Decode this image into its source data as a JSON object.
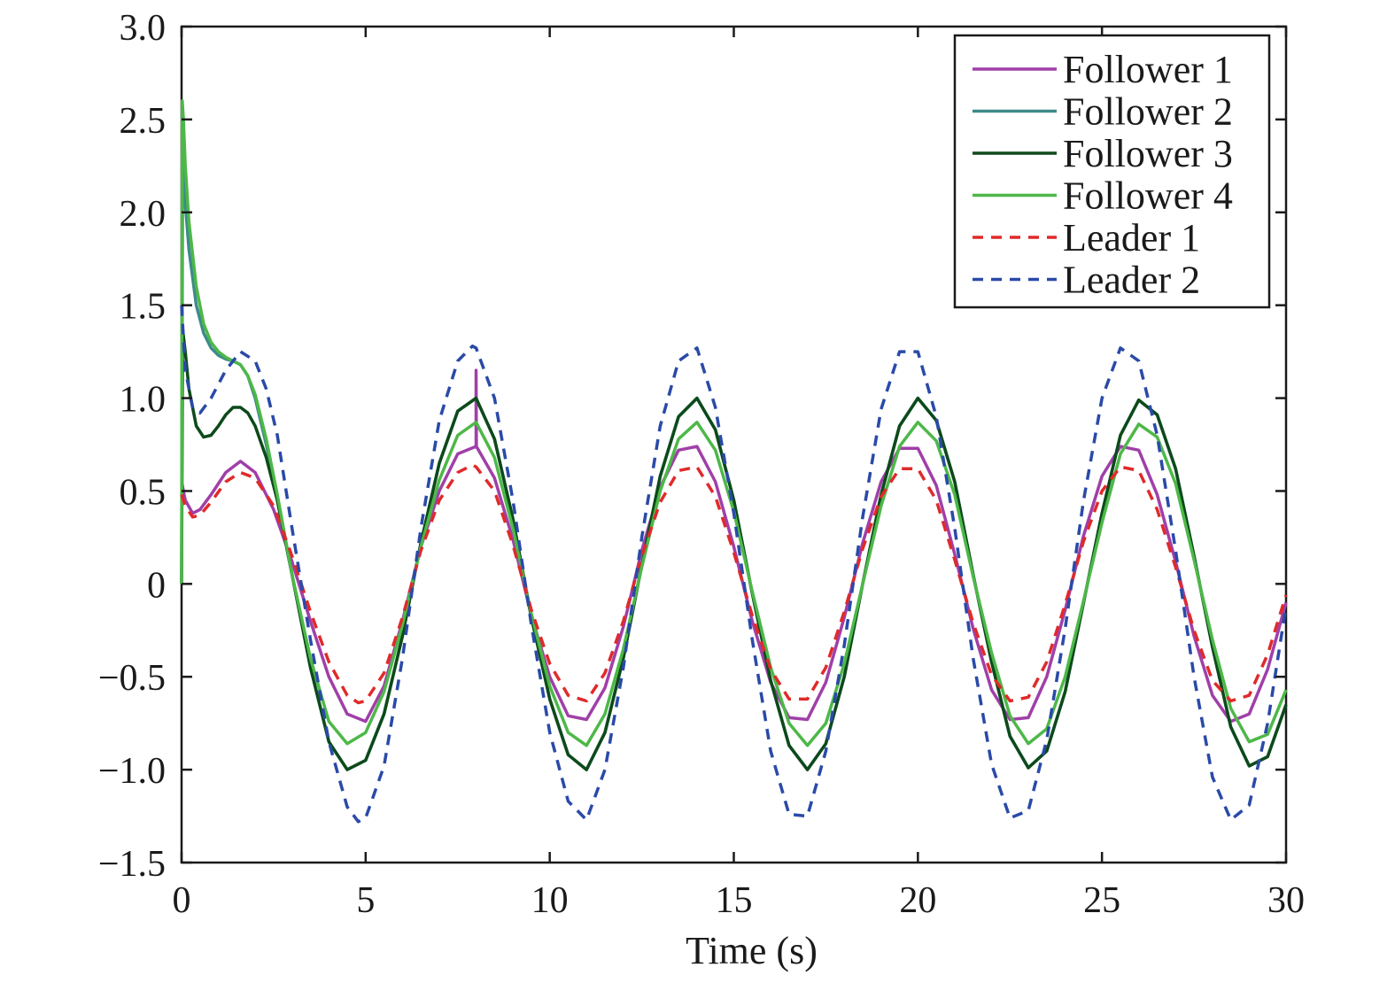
{
  "chart_data": {
    "type": "line",
    "title": "",
    "xlabel": "Time (s)",
    "ylabel": "",
    "xlim": [
      0,
      30
    ],
    "ylim": [
      -1.5,
      3.0
    ],
    "xticks": [
      0,
      5,
      10,
      15,
      20,
      25,
      30
    ],
    "xtick_labels": [
      "0",
      "5",
      "10",
      "15",
      "20",
      "25",
      "30"
    ],
    "yticks": [
      -1.5,
      -1.0,
      -0.5,
      0,
      0.5,
      1.0,
      1.5,
      2.0,
      2.5,
      3.0
    ],
    "ytick_labels": [
      "−1.5",
      "−1.0",
      "−0.5",
      "0",
      "0.5",
      "1.0",
      "1.5",
      "2.0",
      "2.5",
      "3.0"
    ],
    "grid": false,
    "legend_position": "top-right",
    "series": [
      {
        "name": "Follower 1",
        "color": "#a03fa8",
        "dash": "solid",
        "x": [
          0,
          0.1,
          0.3,
          0.5,
          0.8,
          1.2,
          1.6,
          2.0,
          2.5,
          3.0,
          3.5,
          4.0,
          4.5,
          5.0,
          5.5,
          6.0,
          6.5,
          7.0,
          7.5,
          8.0,
          8.0,
          8.01,
          8.5,
          9.0,
          9.5,
          10.0,
          10.5,
          11.0,
          11.5,
          12.0,
          12.5,
          13.0,
          13.5,
          14.0,
          14.5,
          15.0,
          15.5,
          16.0,
          16.5,
          17.0,
          17.5,
          18.0,
          18.5,
          19.0,
          19.5,
          20.0,
          20.5,
          21.0,
          21.5,
          22.0,
          22.5,
          23.0,
          23.5,
          24.0,
          24.5,
          25.0,
          25.5,
          26.0,
          26.5,
          27.0,
          27.5,
          28.0,
          28.5,
          29.0,
          29.5,
          30.0
        ],
        "y": [
          0.55,
          0.45,
          0.38,
          0.4,
          0.48,
          0.6,
          0.66,
          0.6,
          0.4,
          0.12,
          -0.2,
          -0.5,
          -0.7,
          -0.74,
          -0.55,
          -0.2,
          0.2,
          0.5,
          0.7,
          0.74,
          1.15,
          0.74,
          0.57,
          0.24,
          -0.17,
          -0.5,
          -0.71,
          -0.73,
          -0.56,
          -0.23,
          0.18,
          0.52,
          0.72,
          0.74,
          0.55,
          0.2,
          -0.2,
          -0.53,
          -0.72,
          -0.73,
          -0.53,
          -0.18,
          0.22,
          0.55,
          0.73,
          0.73,
          0.53,
          0.16,
          -0.24,
          -0.57,
          -0.73,
          -0.72,
          -0.5,
          -0.14,
          0.26,
          0.58,
          0.74,
          0.72,
          0.48,
          0.12,
          -0.28,
          -0.6,
          -0.74,
          -0.7,
          -0.46,
          -0.1
        ]
      },
      {
        "name": "Follower 2",
        "color": "#3d8a8a",
        "dash": "solid",
        "x": [
          0,
          0.03,
          0.1,
          0.2,
          0.4,
          0.6,
          0.8,
          1.0,
          1.2,
          1.4,
          1.6,
          1.8,
          2.0,
          2.3,
          2.6,
          3.0,
          3.5,
          4.0,
          4.5,
          5.0,
          5.5,
          6.0,
          6.5,
          7.0,
          7.5,
          8.0,
          8.5,
          9.0,
          9.5,
          10.0,
          10.5,
          11.0,
          11.5,
          12.0,
          12.5,
          13.0,
          13.5,
          14.0,
          14.5,
          15.0,
          15.5,
          16.0,
          16.5,
          17.0,
          17.5,
          18.0,
          18.5,
          19.0,
          19.5,
          20.0,
          20.5,
          21.0,
          21.5,
          22.0,
          22.5,
          23.0,
          23.5,
          24.0,
          24.5,
          25.0,
          25.5,
          26.0,
          26.5,
          27.0,
          27.5,
          28.0,
          28.5,
          29.0,
          29.5,
          30.0
        ],
        "y": [
          0.0,
          2.25,
          2.05,
          1.8,
          1.5,
          1.35,
          1.27,
          1.23,
          1.21,
          1.2,
          1.18,
          1.12,
          1.0,
          0.75,
          0.45,
          0.05,
          -0.45,
          -0.85,
          -1.0,
          -0.95,
          -0.7,
          -0.28,
          0.22,
          0.65,
          0.93,
          1.0,
          0.78,
          0.35,
          -0.18,
          -0.62,
          -0.92,
          -1.0,
          -0.8,
          -0.4,
          0.1,
          0.58,
          0.9,
          1.0,
          0.83,
          0.45,
          -0.05,
          -0.52,
          -0.87,
          -1.0,
          -0.86,
          -0.5,
          0.0,
          0.48,
          0.85,
          1.0,
          0.88,
          0.55,
          0.05,
          -0.42,
          -0.82,
          -0.99,
          -0.9,
          -0.58,
          -0.1,
          0.38,
          0.8,
          0.99,
          0.91,
          0.62,
          0.15,
          -0.34,
          -0.77,
          -0.98,
          -0.93,
          -0.65
        ]
      },
      {
        "name": "Follower 3",
        "color": "#0d4a1a",
        "dash": "solid",
        "x": [
          0,
          0.03,
          0.1,
          0.2,
          0.4,
          0.6,
          0.8,
          1.0,
          1.2,
          1.4,
          1.6,
          1.8,
          2.0,
          2.3,
          2.6,
          3.0,
          3.5,
          4.0,
          4.5,
          5.0,
          5.5,
          6.0,
          6.5,
          7.0,
          7.5,
          8.0,
          8.5,
          9.0,
          9.5,
          10.0,
          10.5,
          11.0,
          11.5,
          12.0,
          12.5,
          13.0,
          13.5,
          14.0,
          14.5,
          15.0,
          15.5,
          16.0,
          16.5,
          17.0,
          17.5,
          18.0,
          18.5,
          19.0,
          19.5,
          20.0,
          20.5,
          21.0,
          21.5,
          22.0,
          22.5,
          23.0,
          23.5,
          24.0,
          24.5,
          25.0,
          25.5,
          26.0,
          26.5,
          27.0,
          27.5,
          28.0,
          28.5,
          29.0,
          29.5,
          30.0
        ],
        "y": [
          0.0,
          1.37,
          1.25,
          1.05,
          0.85,
          0.79,
          0.8,
          0.85,
          0.91,
          0.95,
          0.95,
          0.92,
          0.85,
          0.68,
          0.45,
          0.05,
          -0.45,
          -0.85,
          -1.0,
          -0.95,
          -0.7,
          -0.28,
          0.22,
          0.65,
          0.93,
          1.0,
          0.78,
          0.35,
          -0.18,
          -0.62,
          -0.92,
          -1.0,
          -0.8,
          -0.4,
          0.1,
          0.58,
          0.9,
          1.0,
          0.83,
          0.45,
          -0.05,
          -0.52,
          -0.87,
          -1.0,
          -0.86,
          -0.5,
          0.0,
          0.48,
          0.85,
          1.0,
          0.88,
          0.55,
          0.05,
          -0.42,
          -0.82,
          -0.99,
          -0.9,
          -0.58,
          -0.1,
          0.38,
          0.8,
          0.99,
          0.91,
          0.62,
          0.15,
          -0.34,
          -0.77,
          -0.98,
          -0.93,
          -0.65
        ]
      },
      {
        "name": "Follower 4",
        "color": "#4db848",
        "dash": "solid",
        "x": [
          0,
          0.02,
          0.05,
          0.1,
          0.2,
          0.4,
          0.6,
          0.8,
          1.0,
          1.2,
          1.4,
          1.6,
          1.8,
          2.0,
          2.3,
          2.6,
          3.0,
          3.5,
          4.0,
          4.5,
          5.0,
          5.5,
          6.0,
          6.5,
          7.0,
          7.5,
          8.0,
          8.5,
          9.0,
          9.5,
          10.0,
          10.5,
          11.0,
          11.5,
          12.0,
          12.5,
          13.0,
          13.5,
          14.0,
          14.5,
          15.0,
          15.5,
          16.0,
          16.5,
          17.0,
          17.5,
          18.0,
          18.5,
          19.0,
          19.5,
          20.0,
          20.5,
          21.0,
          21.5,
          22.0,
          22.5,
          23.0,
          23.5,
          24.0,
          24.5,
          25.0,
          25.5,
          26.0,
          26.5,
          27.0,
          27.5,
          28.0,
          28.5,
          29.0,
          29.5,
          30.0
        ],
        "y": [
          0.0,
          2.6,
          2.5,
          2.25,
          1.95,
          1.6,
          1.4,
          1.3,
          1.25,
          1.22,
          1.2,
          1.18,
          1.12,
          1.02,
          0.78,
          0.48,
          0.05,
          -0.4,
          -0.74,
          -0.86,
          -0.8,
          -0.58,
          -0.22,
          0.2,
          0.56,
          0.8,
          0.87,
          0.68,
          0.3,
          -0.16,
          -0.55,
          -0.8,
          -0.87,
          -0.7,
          -0.35,
          0.09,
          0.5,
          0.78,
          0.87,
          0.72,
          0.39,
          -0.04,
          -0.45,
          -0.75,
          -0.87,
          -0.75,
          -0.43,
          0.0,
          0.42,
          0.74,
          0.87,
          0.77,
          0.48,
          0.04,
          -0.37,
          -0.71,
          -0.86,
          -0.78,
          -0.5,
          -0.09,
          0.33,
          0.7,
          0.86,
          0.79,
          0.54,
          0.13,
          -0.3,
          -0.67,
          -0.85,
          -0.81,
          -0.57
        ]
      },
      {
        "name": "Leader 1",
        "color": "#e02a2a",
        "dash": "dashed",
        "x": [
          0,
          0.1,
          0.3,
          0.5,
          0.8,
          1.2,
          1.6,
          2.0,
          2.5,
          3.0,
          3.5,
          4.0,
          4.5,
          4.8,
          5.0,
          5.5,
          6.0,
          6.5,
          7.0,
          7.5,
          7.9,
          8.0,
          8.5,
          9.0,
          9.5,
          10.0,
          10.5,
          11.0,
          11.5,
          12.0,
          12.5,
          13.0,
          13.5,
          14.0,
          14.5,
          15.0,
          15.5,
          16.0,
          16.5,
          17.0,
          17.5,
          18.0,
          18.5,
          19.0,
          19.5,
          20.0,
          20.5,
          21.0,
          21.5,
          22.0,
          22.5,
          23.0,
          23.5,
          24.0,
          24.5,
          25.0,
          25.5,
          26.0,
          26.5,
          27.0,
          27.5,
          28.0,
          28.5,
          29.0,
          29.5,
          30.0
        ],
        "y": [
          0.48,
          0.42,
          0.36,
          0.37,
          0.44,
          0.55,
          0.6,
          0.57,
          0.42,
          0.15,
          -0.15,
          -0.42,
          -0.6,
          -0.64,
          -0.63,
          -0.48,
          -0.18,
          0.18,
          0.45,
          0.6,
          0.64,
          0.63,
          0.5,
          0.21,
          -0.14,
          -0.43,
          -0.6,
          -0.63,
          -0.48,
          -0.2,
          0.15,
          0.44,
          0.61,
          0.63,
          0.47,
          0.17,
          -0.17,
          -0.46,
          -0.62,
          -0.62,
          -0.45,
          -0.15,
          0.19,
          0.47,
          0.62,
          0.62,
          0.45,
          0.13,
          -0.21,
          -0.49,
          -0.63,
          -0.61,
          -0.42,
          -0.11,
          0.23,
          0.5,
          0.63,
          0.61,
          0.4,
          0.09,
          -0.25,
          -0.52,
          -0.63,
          -0.6,
          -0.38,
          -0.06
        ]
      },
      {
        "name": "Leader 2",
        "color": "#2a4aa8",
        "dash": "dashed",
        "x": [
          0,
          0.1,
          0.3,
          0.5,
          0.8,
          1.2,
          1.6,
          2.0,
          2.3,
          2.6,
          3.0,
          3.5,
          4.0,
          4.5,
          4.8,
          5.0,
          5.5,
          6.0,
          6.5,
          7.0,
          7.5,
          7.9,
          8.0,
          8.5,
          9.0,
          9.5,
          10.0,
          10.5,
          11.0,
          11.5,
          12.0,
          12.5,
          13.0,
          13.5,
          14.0,
          14.5,
          15.0,
          15.5,
          16.0,
          16.5,
          17.0,
          17.5,
          18.0,
          18.5,
          19.0,
          19.5,
          20.0,
          20.5,
          21.0,
          21.5,
          22.0,
          22.5,
          23.0,
          23.5,
          24.0,
          24.5,
          25.0,
          25.5,
          26.0,
          26.5,
          27.0,
          27.5,
          28.0,
          28.5,
          29.0,
          29.5,
          30.0
        ],
        "y": [
          1.5,
          1.15,
          0.95,
          0.92,
          1.0,
          1.15,
          1.25,
          1.2,
          1.05,
          0.8,
          0.3,
          -0.3,
          -0.85,
          -1.2,
          -1.28,
          -1.26,
          -0.98,
          -0.4,
          0.3,
          0.88,
          1.2,
          1.28,
          1.27,
          1.0,
          0.45,
          -0.22,
          -0.8,
          -1.17,
          -1.27,
          -1.0,
          -0.45,
          0.25,
          0.85,
          1.2,
          1.27,
          0.95,
          0.38,
          -0.3,
          -0.9,
          -1.24,
          -1.25,
          -0.9,
          -0.33,
          0.36,
          0.94,
          1.25,
          1.25,
          0.9,
          0.3,
          -0.4,
          -0.97,
          -1.26,
          -1.22,
          -0.84,
          -0.24,
          0.45,
          1.0,
          1.27,
          1.2,
          0.8,
          0.18,
          -0.5,
          -1.04,
          -1.27,
          -1.19,
          -0.75,
          -0.12
        ]
      }
    ]
  }
}
